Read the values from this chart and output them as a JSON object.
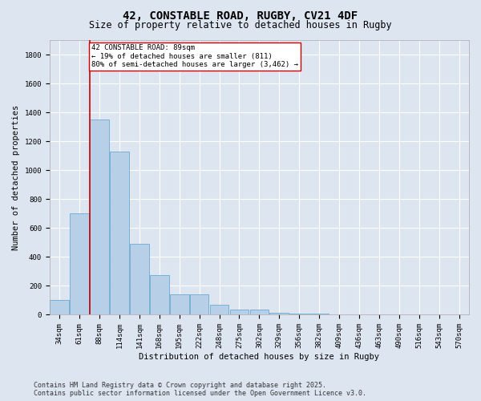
{
  "title_line1": "42, CONSTABLE ROAD, RUGBY, CV21 4DF",
  "title_line2": "Size of property relative to detached houses in Rugby",
  "xlabel": "Distribution of detached houses by size in Rugby",
  "ylabel": "Number of detached properties",
  "categories": [
    "34sqm",
    "61sqm",
    "88sqm",
    "114sqm",
    "141sqm",
    "168sqm",
    "195sqm",
    "222sqm",
    "248sqm",
    "275sqm",
    "302sqm",
    "329sqm",
    "356sqm",
    "382sqm",
    "409sqm",
    "436sqm",
    "463sqm",
    "490sqm",
    "516sqm",
    "543sqm",
    "570sqm"
  ],
  "values": [
    100,
    700,
    1350,
    1130,
    490,
    275,
    140,
    140,
    70,
    35,
    35,
    15,
    10,
    8,
    5,
    3,
    2,
    2,
    1,
    0,
    0
  ],
  "bar_color": "#b8cfe8",
  "bar_edge_color": "#6aaad4",
  "background_color": "#dde6f0",
  "plot_bg_color": "#dde6f0",
  "grid_color": "#ffffff",
  "annotation_text": "42 CONSTABLE ROAD: 89sqm\n← 19% of detached houses are smaller (811)\n80% of semi-detached houses are larger (3,462) →",
  "annotation_box_facecolor": "#ffffff",
  "annotation_box_edgecolor": "#cc0000",
  "red_line_bin_index": 2,
  "ylim": [
    0,
    1900
  ],
  "yticks": [
    0,
    200,
    400,
    600,
    800,
    1000,
    1200,
    1400,
    1600,
    1800
  ],
  "footer_line1": "Contains HM Land Registry data © Crown copyright and database right 2025.",
  "footer_line2": "Contains public sector information licensed under the Open Government Licence v3.0.",
  "title_fontsize": 10,
  "subtitle_fontsize": 8.5,
  "axis_label_fontsize": 7.5,
  "tick_fontsize": 6.5,
  "annotation_fontsize": 6.5,
  "footer_fontsize": 6.0,
  "ylabel_fontsize": 7.5
}
